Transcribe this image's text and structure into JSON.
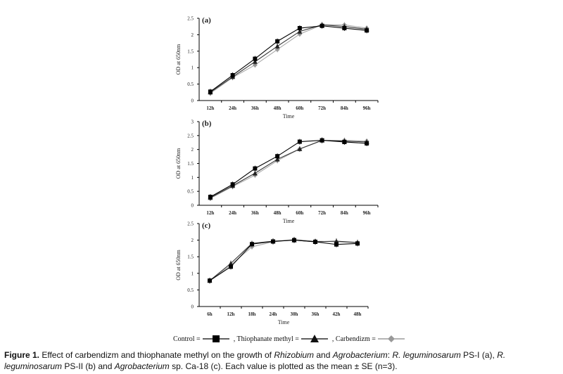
{
  "legend": {
    "items": [
      {
        "label": "Control =",
        "marker": "square",
        "color": "#000000"
      },
      {
        "label": ", Thiophanate methyl =",
        "marker": "triangle",
        "color": "#111111"
      },
      {
        "label": ", Carbendizm =",
        "marker": "diamond",
        "color": "#999999"
      }
    ]
  },
  "caption": {
    "figure_label": "Figure 1.",
    "text_1": " Effect of carbendizm and thiophanate methyl on the growth of ",
    "rhizobium": "Rhizobium",
    "and": " and ",
    "agrobacterium": "Agrobacterium",
    "text_2": ": ",
    "rl1": "R. leguminosarum",
    "text_3": " PS-I (a), ",
    "rl2": "R. leguminosarum",
    "text_4": " PS-II (b) and ",
    "agro_sp": "Agrobacterium",
    "text_5": " sp. Ca-18 (c). Each value is plotted as the mean ± SE (n=3)."
  },
  "chart_data": [
    {
      "type": "line",
      "panel": "(a)",
      "xlabel": "Time",
      "ylabel": "OD at 650nm",
      "ylim": [
        0,
        2.5
      ],
      "yticks": [
        "0",
        "0.5",
        "1",
        "1.5",
        "2",
        "2.5"
      ],
      "categories": [
        "12h",
        "24h",
        "36h",
        "48h",
        "60h",
        "72h",
        "84h",
        "96h"
      ],
      "series": [
        {
          "name": "Control",
          "values": [
            0.27,
            0.77,
            1.27,
            1.8,
            2.2,
            2.27,
            2.2,
            2.13
          ]
        },
        {
          "name": "Thiophanate methyl",
          "values": [
            0.25,
            0.72,
            1.18,
            1.65,
            2.1,
            2.3,
            2.25,
            2.17
          ]
        },
        {
          "name": "Carbendizm",
          "values": [
            0.22,
            0.7,
            1.08,
            1.55,
            2.02,
            2.3,
            2.3,
            2.2
          ]
        }
      ]
    },
    {
      "type": "line",
      "panel": "(b)",
      "xlabel": "Time",
      "ylabel": "OD at 650nm",
      "ylim": [
        0,
        3
      ],
      "yticks": [
        "0",
        "0.5",
        "1",
        "1.5",
        "2",
        "2.5",
        "3"
      ],
      "categories": [
        "12h",
        "24h",
        "36h",
        "48h",
        "60h",
        "72h",
        "84h",
        "96h"
      ],
      "series": [
        {
          "name": "Control",
          "values": [
            0.3,
            0.75,
            1.32,
            1.76,
            2.28,
            2.33,
            2.27,
            2.22
          ]
        },
        {
          "name": "Thiophanate methyl",
          "values": [
            0.27,
            0.7,
            1.15,
            1.65,
            2.02,
            2.33,
            2.3,
            2.27
          ]
        },
        {
          "name": "Carbendizm",
          "values": [
            0.25,
            0.67,
            1.08,
            1.6,
            2.02,
            2.32,
            2.33,
            2.3
          ]
        }
      ]
    },
    {
      "type": "line",
      "panel": "(c)",
      "xlabel": "Time",
      "ylabel": "OD at 650nm",
      "ylim": [
        0,
        2.5
      ],
      "yticks": [
        "0",
        "0.5",
        "1",
        "1.5",
        "2",
        "2.5"
      ],
      "categories": [
        "6h",
        "12h",
        "18h",
        "24h",
        "30h",
        "36h",
        "42h",
        "48h"
      ],
      "series": [
        {
          "name": "Control",
          "values": [
            0.78,
            1.2,
            1.88,
            1.96,
            2.0,
            1.95,
            1.87,
            1.9
          ]
        },
        {
          "name": "Thiophanate methyl",
          "values": [
            0.78,
            1.3,
            1.9,
            1.97,
            2.0,
            1.95,
            1.97,
            1.93
          ]
        },
        {
          "name": "Carbendizm",
          "values": [
            0.77,
            1.25,
            1.8,
            1.95,
            2.02,
            1.97,
            1.95,
            1.92
          ]
        }
      ]
    }
  ]
}
